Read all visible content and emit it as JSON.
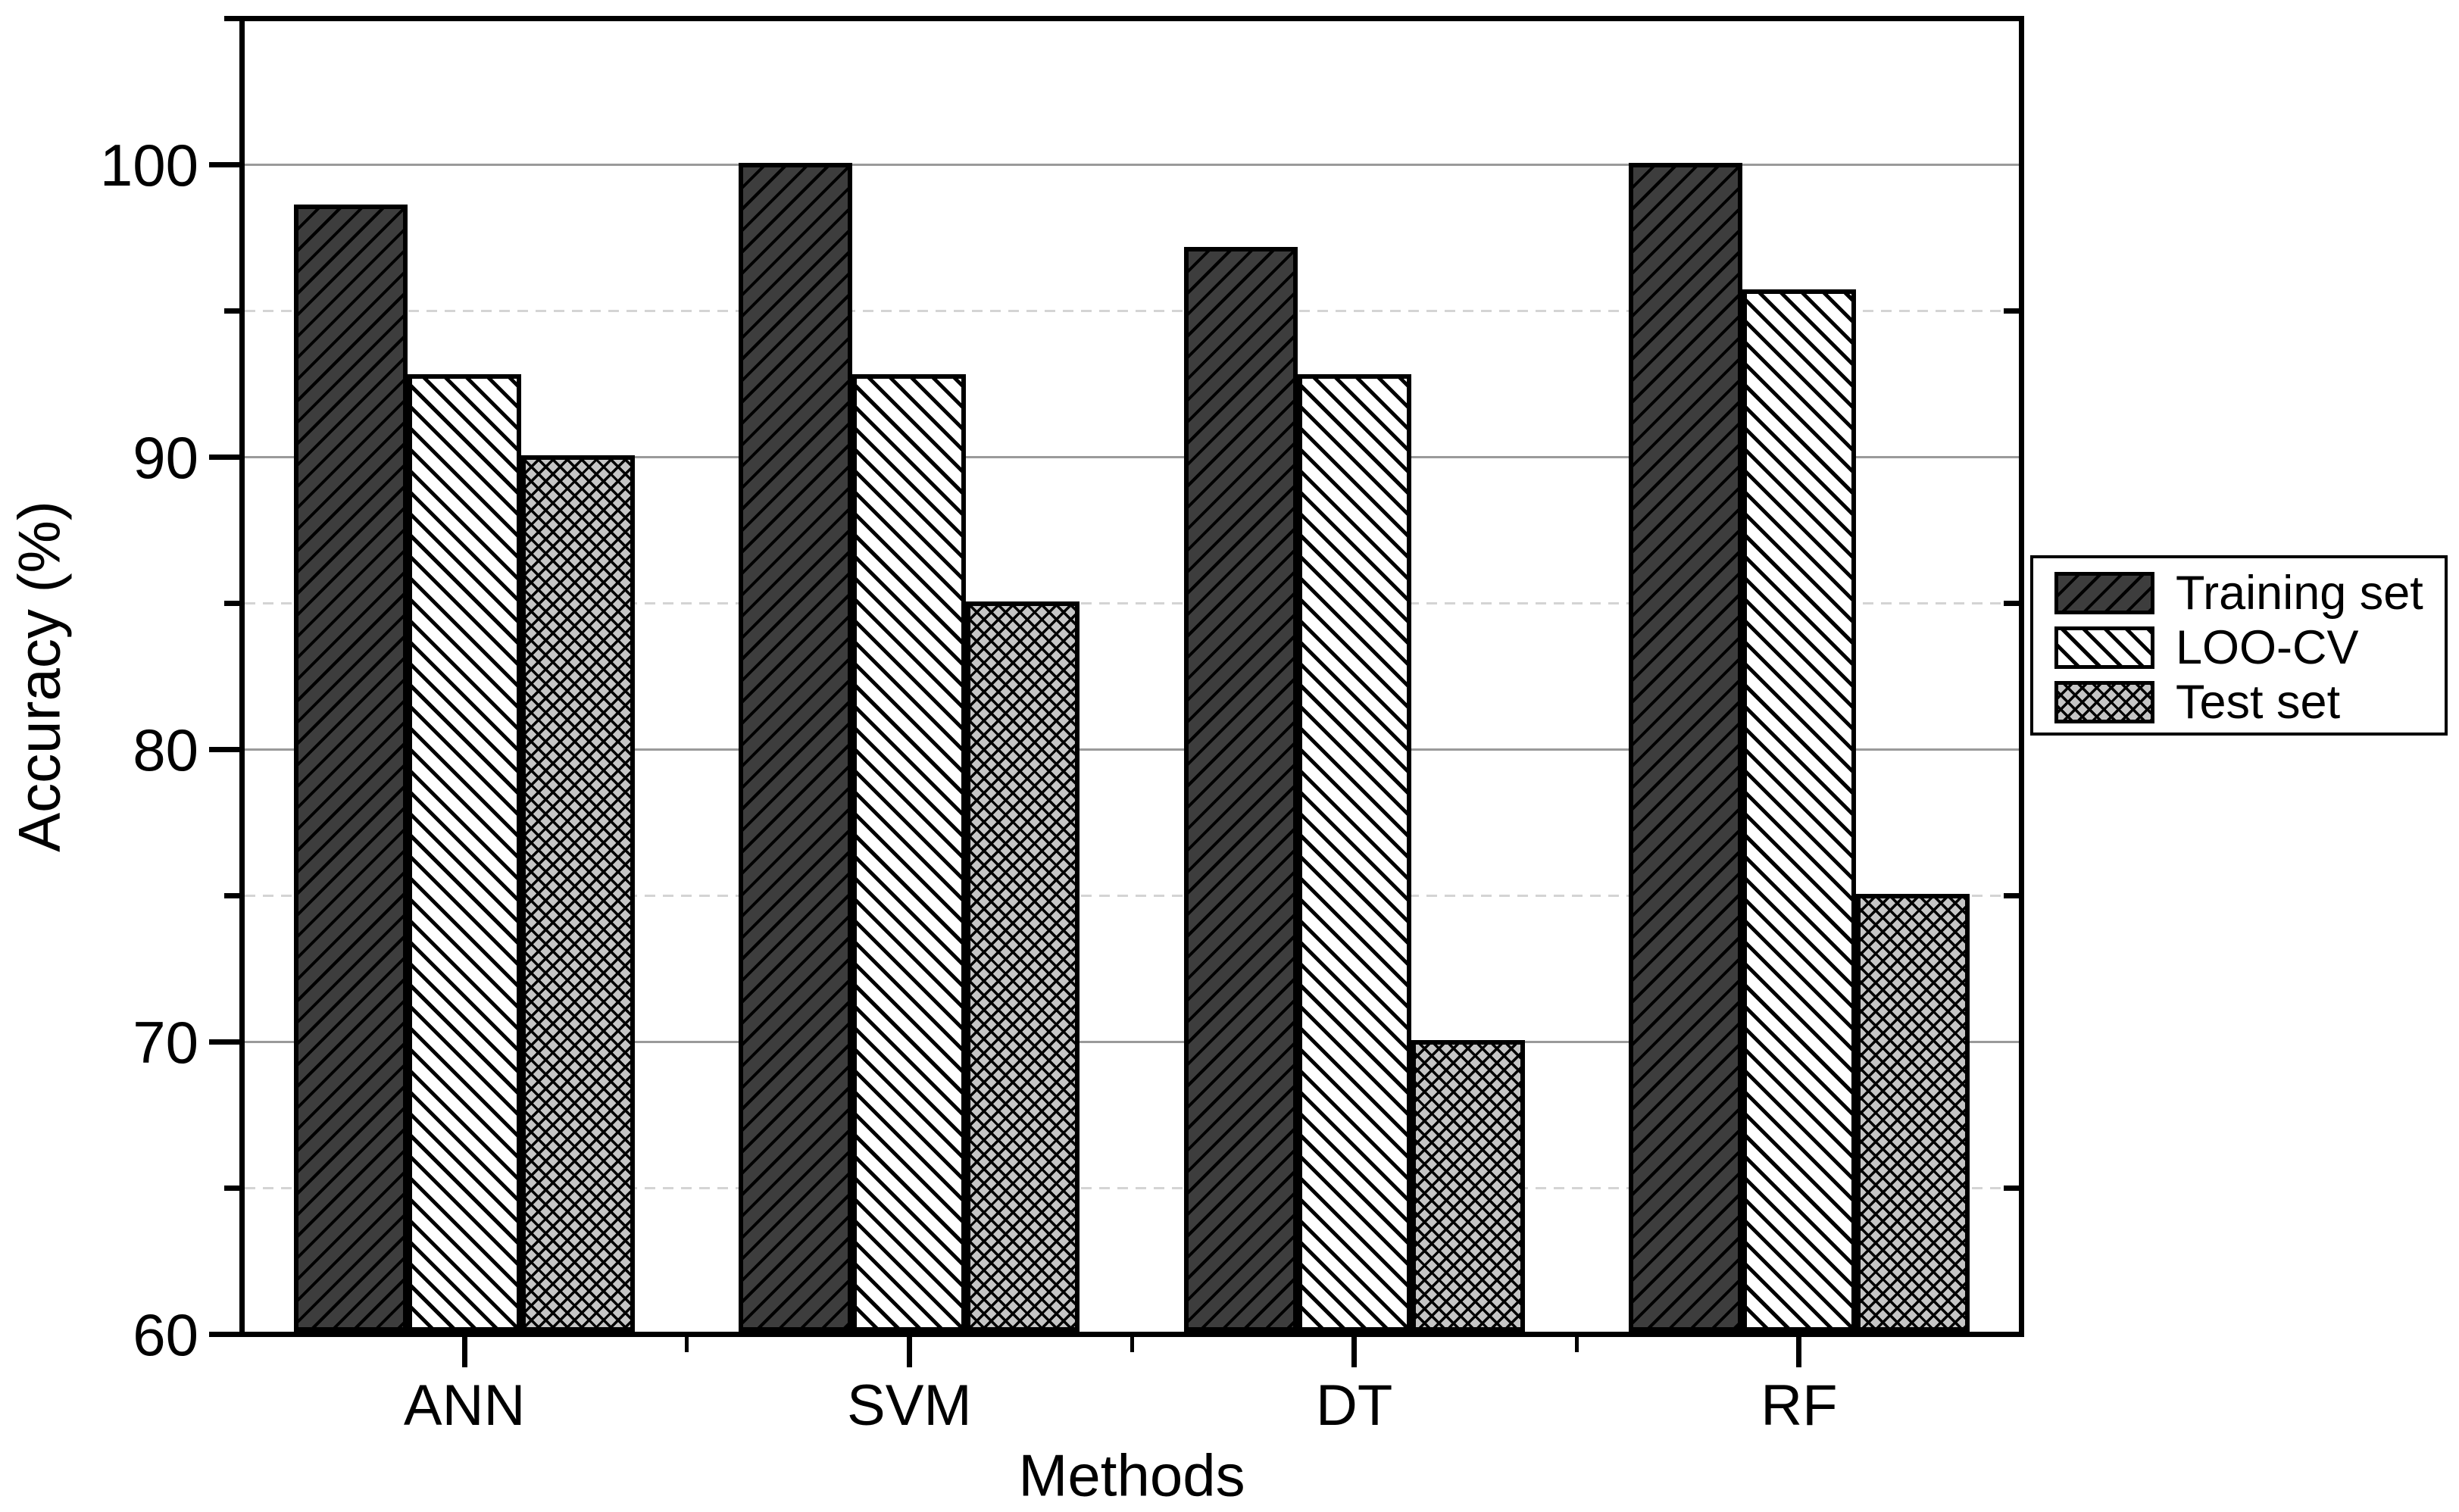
{
  "chart_data": {
    "type": "bar",
    "title": "",
    "xlabel": "Methods",
    "ylabel": "Accuracy (%)",
    "categories": [
      "ANN",
      "SVM",
      "DT",
      "RF"
    ],
    "series": [
      {
        "name": "Training set",
        "pattern": "diagonal-up-hatch",
        "fill": "#3d3d3d",
        "hatch_color": "#000000",
        "values": [
          98.55,
          100.0,
          97.1,
          100.0
        ]
      },
      {
        "name": "LOO-CV",
        "pattern": "diagonal-down-hatch",
        "fill": "#ffffff",
        "hatch_color": "#000000",
        "values": [
          92.75,
          92.75,
          92.75,
          95.65
        ]
      },
      {
        "name": "Test set",
        "pattern": "diamond-crosshatch",
        "fill": "#c5c5c5",
        "hatch_color": "#000000",
        "values": [
          90.0,
          85.0,
          70.0,
          75.0
        ]
      }
    ],
    "ylim": [
      60,
      105
    ],
    "yticks_major": [
      60,
      70,
      80,
      90,
      100
    ],
    "yticks_minor": [
      65,
      75,
      85,
      95
    ],
    "grid": {
      "major_style": "solid",
      "minor_style": "dashed",
      "major_color": "#9a9a9a",
      "minor_color": "#d4d4d4"
    },
    "legend": {
      "position": "right-center",
      "entries": [
        "Training set",
        "LOO-CV",
        "Test set"
      ]
    },
    "axis_color": "#000000",
    "background": "#ffffff"
  }
}
